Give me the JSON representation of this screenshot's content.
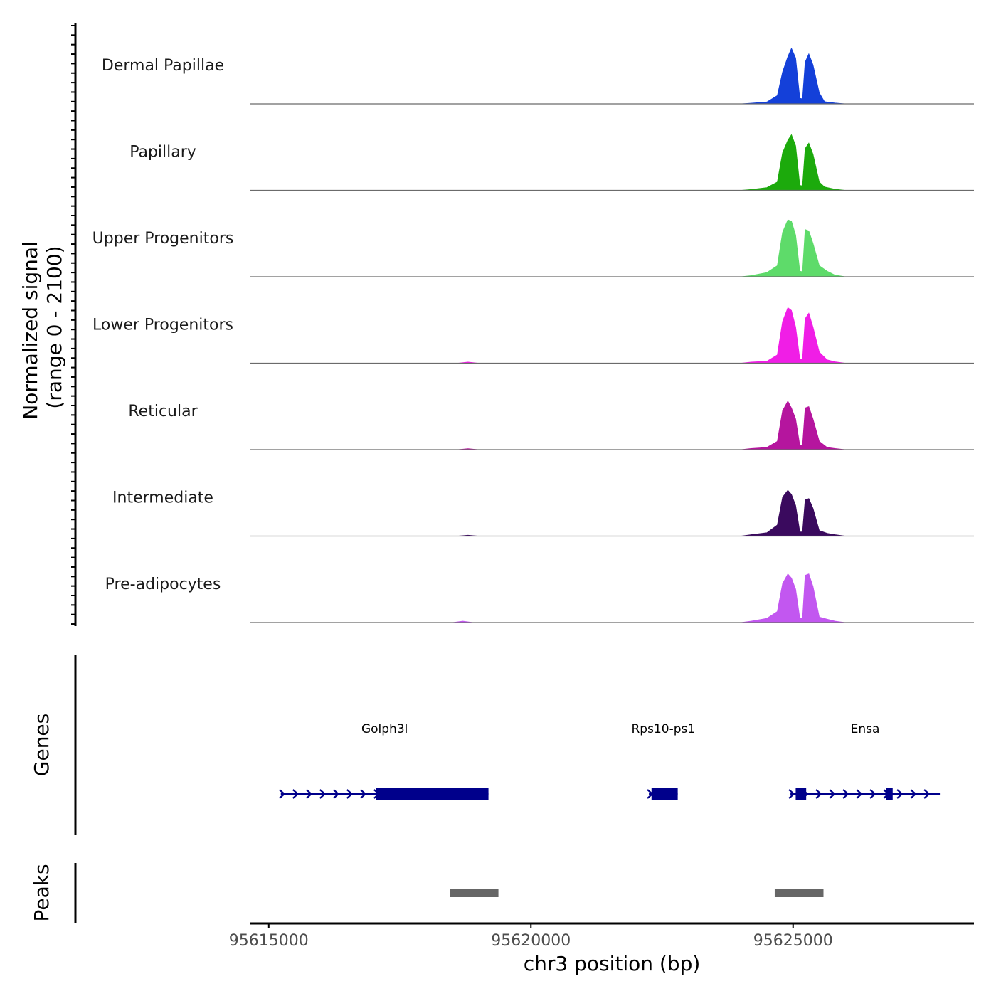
{
  "chart_data": {
    "type": "coverage-track",
    "ylabel_line1": "Normalized signal",
    "ylabel_line2": "(range 0 - 2100)",
    "ylim": [
      0,
      2100
    ],
    "xlabel": "chr3 position (bp)",
    "xlim": [
      95614650,
      95628450
    ],
    "xticks": [
      95615000,
      95620000,
      95625000
    ],
    "xtick_labels": [
      "95615000",
      "95620000",
      "95625000"
    ],
    "tracks": [
      {
        "name": "Dermal Papillae",
        "color": "#1440D9",
        "points": [
          [
            95614650,
            0
          ],
          [
            95624000,
            0
          ],
          [
            95624200,
            25
          ],
          [
            95624500,
            70
          ],
          [
            95624700,
            300
          ],
          [
            95624800,
            1150
          ],
          [
            95624900,
            1700
          ],
          [
            95624970,
            2000
          ],
          [
            95625050,
            1650
          ],
          [
            95625130,
            200
          ],
          [
            95625180,
            180
          ],
          [
            95625230,
            1500
          ],
          [
            95625300,
            1800
          ],
          [
            95625380,
            1400
          ],
          [
            95625500,
            400
          ],
          [
            95625600,
            80
          ],
          [
            95625800,
            30
          ],
          [
            95626000,
            0
          ],
          [
            95628450,
            0
          ]
        ]
      },
      {
        "name": "Papillary",
        "color": "#1CAA0C",
        "points": [
          [
            95614650,
            0
          ],
          [
            95624000,
            0
          ],
          [
            95624200,
            30
          ],
          [
            95624500,
            100
          ],
          [
            95624700,
            300
          ],
          [
            95624800,
            1350
          ],
          [
            95624900,
            1800
          ],
          [
            95624970,
            2000
          ],
          [
            95625050,
            1600
          ],
          [
            95625130,
            180
          ],
          [
            95625180,
            160
          ],
          [
            95625230,
            1500
          ],
          [
            95625300,
            1700
          ],
          [
            95625380,
            1300
          ],
          [
            95625500,
            300
          ],
          [
            95625600,
            120
          ],
          [
            95625800,
            40
          ],
          [
            95626000,
            0
          ],
          [
            95628450,
            0
          ]
        ]
      },
      {
        "name": "Upper Progenitors",
        "color": "#5EDB6A",
        "points": [
          [
            95614650,
            0
          ],
          [
            95624000,
            0
          ],
          [
            95624200,
            40
          ],
          [
            95624500,
            150
          ],
          [
            95624700,
            400
          ],
          [
            95624800,
            1600
          ],
          [
            95624900,
            2050
          ],
          [
            95624970,
            2000
          ],
          [
            95625050,
            1500
          ],
          [
            95625130,
            200
          ],
          [
            95625180,
            180
          ],
          [
            95625230,
            1700
          ],
          [
            95625300,
            1650
          ],
          [
            95625380,
            1200
          ],
          [
            95625500,
            400
          ],
          [
            95625650,
            200
          ],
          [
            95625800,
            60
          ],
          [
            95626000,
            0
          ],
          [
            95628450,
            0
          ]
        ]
      },
      {
        "name": "Lower Progenitors",
        "color": "#F01EE6",
        "points": [
          [
            95614650,
            0
          ],
          [
            95618600,
            0
          ],
          [
            95618800,
            40
          ],
          [
            95619000,
            0
          ],
          [
            95624000,
            0
          ],
          [
            95624200,
            40
          ],
          [
            95624500,
            70
          ],
          [
            95624700,
            300
          ],
          [
            95624800,
            1500
          ],
          [
            95624900,
            2000
          ],
          [
            95624970,
            1900
          ],
          [
            95625050,
            1300
          ],
          [
            95625130,
            150
          ],
          [
            95625180,
            150
          ],
          [
            95625230,
            1600
          ],
          [
            95625300,
            1800
          ],
          [
            95625380,
            1300
          ],
          [
            95625500,
            400
          ],
          [
            95625650,
            120
          ],
          [
            95625800,
            50
          ],
          [
            95626000,
            0
          ],
          [
            95628450,
            0
          ]
        ]
      },
      {
        "name": "Reticular",
        "color": "#B5159E",
        "points": [
          [
            95614650,
            0
          ],
          [
            95618600,
            0
          ],
          [
            95618800,
            35
          ],
          [
            95619000,
            0
          ],
          [
            95624000,
            0
          ],
          [
            95624200,
            40
          ],
          [
            95624500,
            80
          ],
          [
            95624700,
            300
          ],
          [
            95624800,
            1400
          ],
          [
            95624900,
            1750
          ],
          [
            95624970,
            1500
          ],
          [
            95625050,
            1100
          ],
          [
            95625130,
            150
          ],
          [
            95625180,
            150
          ],
          [
            95625230,
            1500
          ],
          [
            95625300,
            1550
          ],
          [
            95625380,
            1100
          ],
          [
            95625500,
            300
          ],
          [
            95625650,
            80
          ],
          [
            95625800,
            40
          ],
          [
            95626000,
            0
          ],
          [
            95628450,
            0
          ]
        ]
      },
      {
        "name": "Intermediate",
        "color": "#3A0A5E",
        "points": [
          [
            95614650,
            0
          ],
          [
            95618600,
            0
          ],
          [
            95618800,
            30
          ],
          [
            95619000,
            0
          ],
          [
            95624000,
            0
          ],
          [
            95624200,
            50
          ],
          [
            95624500,
            120
          ],
          [
            95624700,
            400
          ],
          [
            95624800,
            1400
          ],
          [
            95624900,
            1650
          ],
          [
            95624970,
            1500
          ],
          [
            95625050,
            1100
          ],
          [
            95625130,
            150
          ],
          [
            95625180,
            150
          ],
          [
            95625230,
            1300
          ],
          [
            95625300,
            1350
          ],
          [
            95625380,
            1000
          ],
          [
            95625500,
            200
          ],
          [
            95625650,
            100
          ],
          [
            95625800,
            50
          ],
          [
            95626000,
            0
          ],
          [
            95628450,
            0
          ]
        ]
      },
      {
        "name": "Pre-adipocytes",
        "color": "#C257F0",
        "points": [
          [
            95614650,
            0
          ],
          [
            95618500,
            0
          ],
          [
            95618700,
            50
          ],
          [
            95618900,
            0
          ],
          [
            95624000,
            0
          ],
          [
            95624200,
            50
          ],
          [
            95624500,
            150
          ],
          [
            95624700,
            400
          ],
          [
            95624800,
            1400
          ],
          [
            95624900,
            1750
          ],
          [
            95624970,
            1600
          ],
          [
            95625050,
            1200
          ],
          [
            95625130,
            150
          ],
          [
            95625180,
            150
          ],
          [
            95625230,
            1700
          ],
          [
            95625300,
            1750
          ],
          [
            95625380,
            1300
          ],
          [
            95625500,
            200
          ],
          [
            95625650,
            120
          ],
          [
            95625800,
            50
          ],
          [
            95626000,
            0
          ],
          [
            95628450,
            0
          ]
        ]
      }
    ],
    "genes_panel_label": "Genes",
    "genes": [
      {
        "name": "Golph3l",
        "start": 95615230,
        "end": 95619190,
        "strand": "+",
        "exons": [
          [
            95617050,
            95619190
          ]
        ]
      },
      {
        "name": "Rps10-ps1",
        "start": 95622250,
        "end": 95622800,
        "strand": "+",
        "exons": [
          [
            95622300,
            95622800
          ]
        ]
      },
      {
        "name": "Ensa",
        "start": 95624950,
        "end": 95627800,
        "strand": "+",
        "exons": [
          [
            95625050,
            95625250
          ],
          [
            95626780,
            95626900
          ]
        ]
      }
    ],
    "peaks_panel_label": "Peaks",
    "peaks": [
      [
        95618450,
        95619380
      ],
      [
        95624650,
        95625580
      ]
    ],
    "gene_color": "#00008B",
    "peak_color": "#666666"
  }
}
